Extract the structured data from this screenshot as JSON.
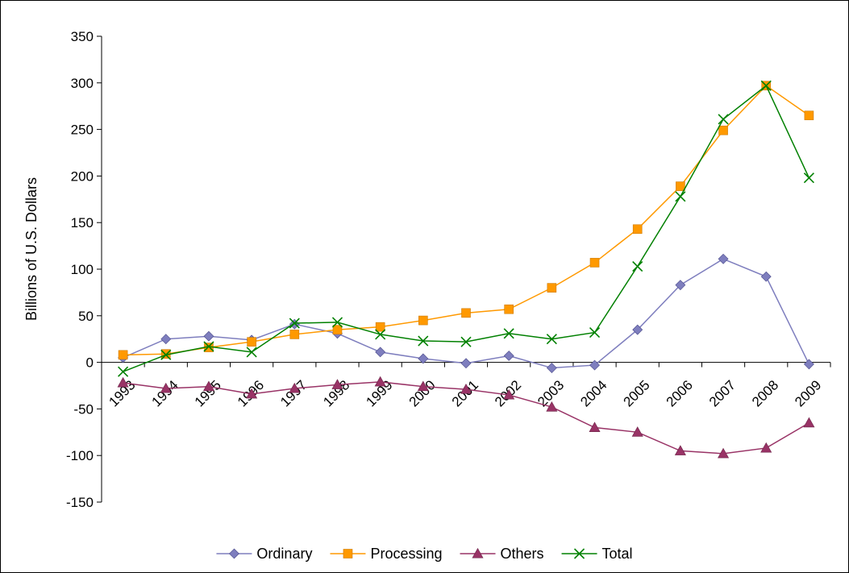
{
  "chart_data": {
    "type": "line",
    "title": "",
    "xlabel": "",
    "ylabel": "Billions of U.S. Dollars",
    "ylim": [
      -150,
      350
    ],
    "yticks": [
      -150,
      -100,
      -50,
      0,
      50,
      100,
      150,
      200,
      250,
      300,
      350
    ],
    "grid": false,
    "legend_position": "bottom",
    "categories": [
      "1993",
      "1994",
      "1995",
      "1996",
      "1997",
      "1998",
      "1999",
      "2000",
      "2001",
      "2002",
      "2003",
      "2004",
      "2005",
      "2006",
      "2007",
      "2008",
      "2009"
    ],
    "series": [
      {
        "name": "Ordinary",
        "color": "#7e7ebe",
        "marker": "diamond",
        "values": [
          5,
          25,
          28,
          24,
          41,
          31,
          11,
          4,
          -1,
          7,
          -6,
          -3,
          35,
          83,
          111,
          92,
          -2
        ]
      },
      {
        "name": "Processing",
        "color": "#ff9900",
        "marker": "square",
        "values": [
          8,
          9,
          16,
          22,
          30,
          35,
          38,
          45,
          53,
          57,
          80,
          107,
          143,
          189,
          249,
          297,
          265
        ]
      },
      {
        "name": "Others",
        "color": "#993366",
        "marker": "triangle",
        "values": [
          -22,
          -28,
          -26,
          -34,
          -28,
          -24,
          -21,
          -26,
          -29,
          -35,
          -48,
          -70,
          -75,
          -95,
          -98,
          -92,
          -65
        ]
      },
      {
        "name": "Total",
        "color": "#008000",
        "marker": "x",
        "values": [
          -10,
          8,
          17,
          11,
          42,
          43,
          30,
          23,
          22,
          31,
          25,
          32,
          103,
          178,
          261,
          297,
          198
        ]
      }
    ]
  }
}
